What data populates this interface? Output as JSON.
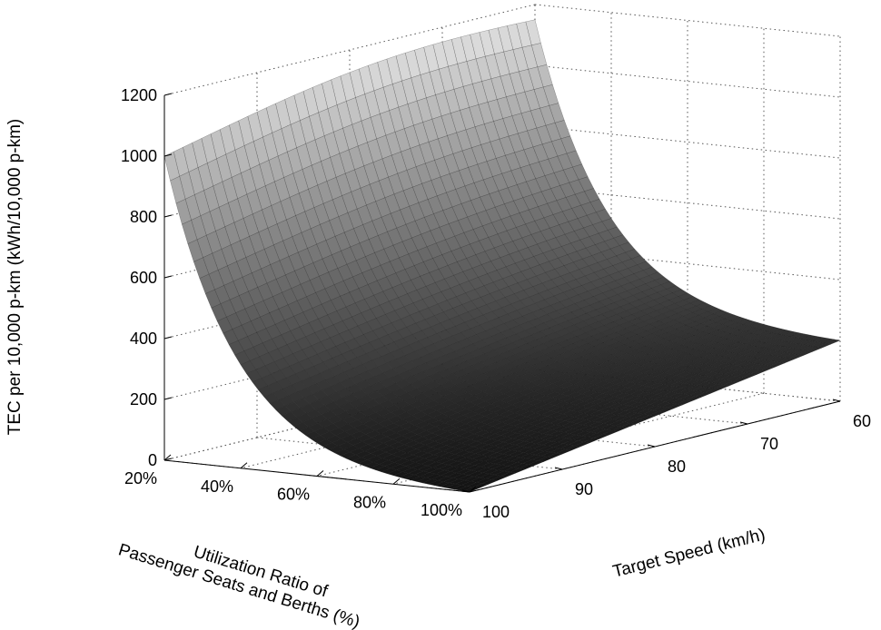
{
  "chart_data": {
    "type": "surface3d",
    "title": "",
    "xlabel": [
      "Utilization Ratio of",
      "Passenger Seats and Berths (%)"
    ],
    "ylabel": "Target Speed (km/h)",
    "zlabel": "TEC per 10,000 p-km (kWh/10,000 p-km)",
    "x_ticks": [
      "20%",
      "40%",
      "60%",
      "80%",
      "100%"
    ],
    "x_tick_values": [
      20,
      40,
      60,
      80,
      100
    ],
    "y_ticks": [
      "60",
      "70",
      "80",
      "90",
      "100"
    ],
    "y_tick_values": [
      60,
      70,
      80,
      90,
      100
    ],
    "z_ticks": [
      "0",
      "200",
      "400",
      "600",
      "800",
      "1000",
      "1200"
    ],
    "z_tick_values": [
      0,
      200,
      400,
      600,
      800,
      1000,
      1200
    ],
    "xlim": [
      20,
      100
    ],
    "ylim": [
      60,
      100
    ],
    "zlim": [
      0,
      1200
    ],
    "grid": true,
    "colormap": "gray",
    "surface": {
      "utilization_pct": [
        20,
        100
      ],
      "speed_kmh": [
        60,
        100
      ],
      "corner_values": {
        "util_20_speed_100": 1000,
        "util_20_speed_60": 1150,
        "util_100_speed_100": 0,
        "util_100_speed_60": 200
      }
    }
  }
}
